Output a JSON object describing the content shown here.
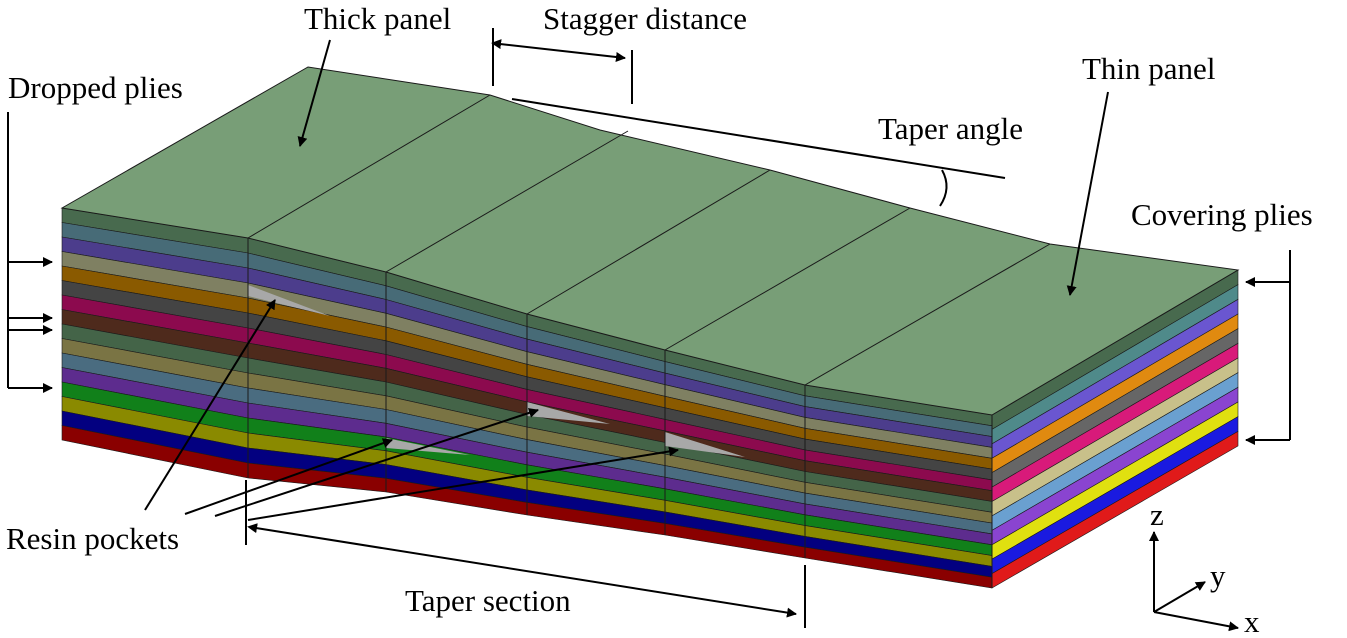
{
  "labels": {
    "thick_panel": "Thick panel",
    "stagger_distance": "Stagger distance",
    "thin_panel": "Thin panel",
    "dropped_plies": "Dropped plies",
    "taper_angle": "Taper angle",
    "covering_plies": "Covering plies",
    "resin_pockets": "Resin pockets",
    "taper_section": "Taper section",
    "axis_z": "z",
    "axis_y": "y",
    "axis_x": "x"
  },
  "colors": {
    "top_surface": "#789e77",
    "resin": "#a8a8a8",
    "front_plies": [
      "#486a4e",
      "#476b77",
      "#4c3d8c",
      "#7f8062",
      "#8a5a00",
      "#444444",
      "#8c0a4e",
      "#4e2a1c",
      "#446448",
      "#7a7444",
      "#4a6c80",
      "#5d2c8e",
      "#11801a",
      "#8a8a00",
      "#030080",
      "#8a0000"
    ],
    "side_plies": [
      "#486a4e",
      "#4f8a8a",
      "#6a56d0",
      "#e08a10",
      "#666666",
      "#d81a7a",
      "#c8c08a",
      "#6aa0d0",
      "#8a44d0",
      "#e0e010",
      "#1a1ae0",
      "#e01a1a"
    ]
  }
}
